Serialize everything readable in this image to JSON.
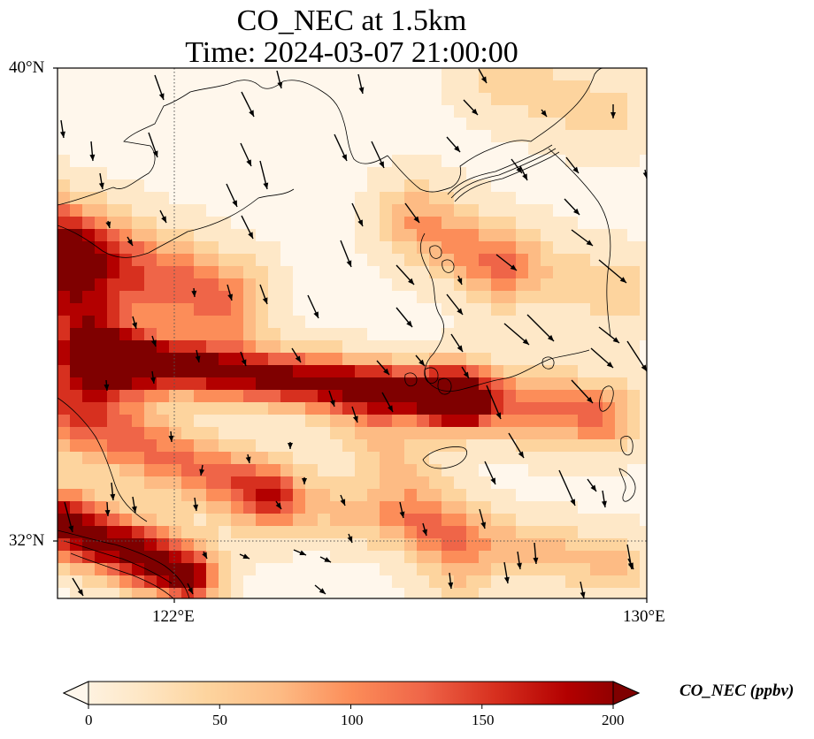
{
  "title": {
    "line1": "CO_NEC at 1.5km",
    "line2": "Time: 2024-03-07 21:00:00"
  },
  "map": {
    "lon_range": [
      119,
      130
    ],
    "lat_range": [
      31.7,
      40
    ],
    "xticks": [
      {
        "value": 122,
        "label": "122°E"
      },
      {
        "value": 130,
        "label": "130°E"
      }
    ],
    "yticks": [
      {
        "value": 40,
        "label": "40°N"
      },
      {
        "value": 32,
        "label": "32°N"
      }
    ],
    "gridlines": "dotted at 122°E and 32°N"
  },
  "colorbar": {
    "label": "CO_NEC (ppbv)",
    "range": [
      0,
      200
    ],
    "ticks": [
      0,
      50,
      100,
      150,
      200
    ],
    "extend": "both",
    "colormap": "OrRd",
    "colors": [
      "#fff7ec",
      "#fee8c8",
      "#fdd49e",
      "#fdbb84",
      "#fc8d59",
      "#ef6548",
      "#d7301f",
      "#b30000",
      "#7f0000"
    ]
  },
  "plume_description": {
    "main_band_center_ppbv": 200,
    "background_ppbv": 10
  }
}
